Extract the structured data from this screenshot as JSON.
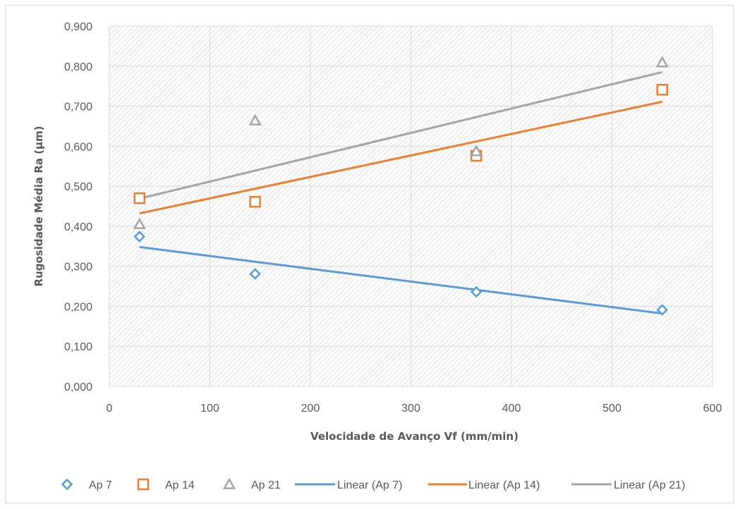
{
  "chart_data": {
    "type": "scatter",
    "title": "",
    "xlabel": "Velocidade de Avanço Vf (mm/min)",
    "ylabel": "Rugosidade Média Ra (µm)",
    "xlim": [
      0,
      600
    ],
    "ylim": [
      0,
      0.9
    ],
    "x_ticks": [
      0,
      100,
      200,
      300,
      400,
      500,
      600
    ],
    "x_tick_labels": [
      "0",
      "100",
      "200",
      "300",
      "400",
      "500",
      "600"
    ],
    "y_ticks": [
      0,
      0.1,
      0.2,
      0.3,
      0.4,
      0.5,
      0.6,
      0.7,
      0.8,
      0.9
    ],
    "y_tick_labels": [
      "0,000",
      "0,100",
      "0,200",
      "0,300",
      "0,400",
      "0,500",
      "0,600",
      "0,700",
      "0,800",
      "0,900"
    ],
    "grid": true,
    "plot_background": "diagonal hatch",
    "legend_position": "bottom",
    "x": [
      30,
      145,
      365,
      550
    ],
    "series": [
      {
        "name": "Ap 7",
        "marker": "diamond",
        "color": "#5b9bd5",
        "values": [
          0.374,
          0.281,
          0.236,
          0.191
        ]
      },
      {
        "name": "Ap 14",
        "marker": "square",
        "color": "#ed7d31",
        "values": [
          0.47,
          0.461,
          0.576,
          0.741
        ]
      },
      {
        "name": "Ap 21",
        "marker": "triangle",
        "color": "#a5a5a5",
        "values": [
          0.405,
          0.664,
          0.587,
          0.809
        ]
      }
    ],
    "trendlines": [
      {
        "name": "Linear (Ap 7)",
        "of": "Ap 7",
        "color": "#5b9bd5",
        "x": [
          30,
          550
        ],
        "y": [
          0.348,
          0.182
        ]
      },
      {
        "name": "Linear (Ap 14)",
        "of": "Ap 14",
        "color": "#ed7d31",
        "x": [
          30,
          550
        ],
        "y": [
          0.432,
          0.711
        ]
      },
      {
        "name": "Linear (Ap 21)",
        "of": "Ap 21",
        "color": "#a5a5a5",
        "x": [
          30,
          550
        ],
        "y": [
          0.469,
          0.785
        ]
      }
    ]
  }
}
